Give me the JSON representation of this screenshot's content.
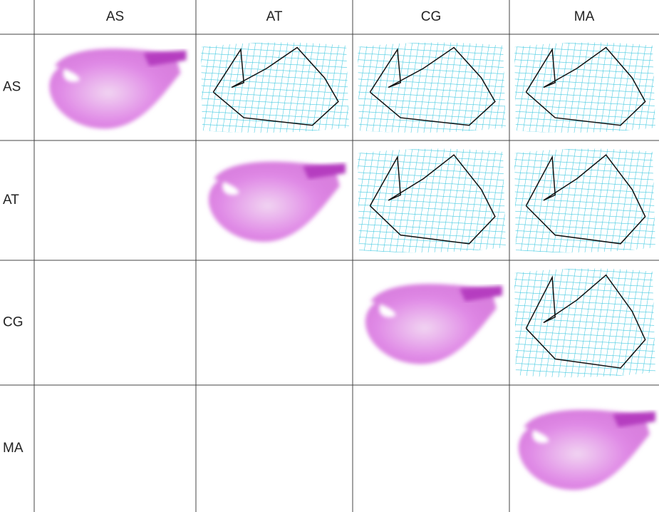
{
  "table": {
    "columns": [
      "AS",
      "AT",
      "CG",
      "MA"
    ],
    "rows": [
      "AS",
      "AT",
      "CG",
      "MA"
    ]
  }
}
